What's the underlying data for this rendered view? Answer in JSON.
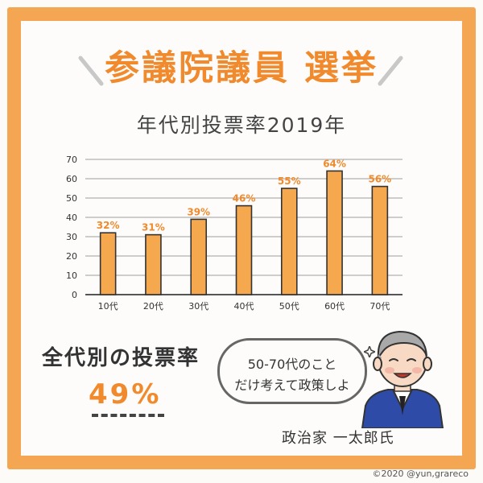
{
  "header": {
    "title": "参議院議員 選挙",
    "subtitle": "年代別投票率2019年"
  },
  "summary": {
    "label": "全代別の投票率",
    "value": "49%"
  },
  "speech": {
    "line1": "50-70代のこと",
    "line2": "だけ考えて政策しよ"
  },
  "speaker": "政治家 一太郎氏",
  "credit": "©2020 @yun,grareco",
  "colors": {
    "accent": "#f08a2c",
    "bar": "#f6a84e",
    "frame": "#f4a652",
    "suit": "#2f4ba8"
  },
  "chart_data": {
    "type": "bar",
    "title": "年代別投票率2019年",
    "categories": [
      "10代",
      "20代",
      "30代",
      "40代",
      "50代",
      "60代",
      "70代"
    ],
    "values": [
      32,
      31,
      39,
      46,
      55,
      64,
      56
    ],
    "value_labels": [
      "32%",
      "31%",
      "39%",
      "46%",
      "55%",
      "64%",
      "56%"
    ],
    "y_ticks": [
      "0",
      "10",
      "20",
      "30",
      "40",
      "50",
      "60",
      "70"
    ],
    "ylim": [
      0,
      70
    ],
    "xlabel": "",
    "ylabel": "",
    "grid": true
  }
}
